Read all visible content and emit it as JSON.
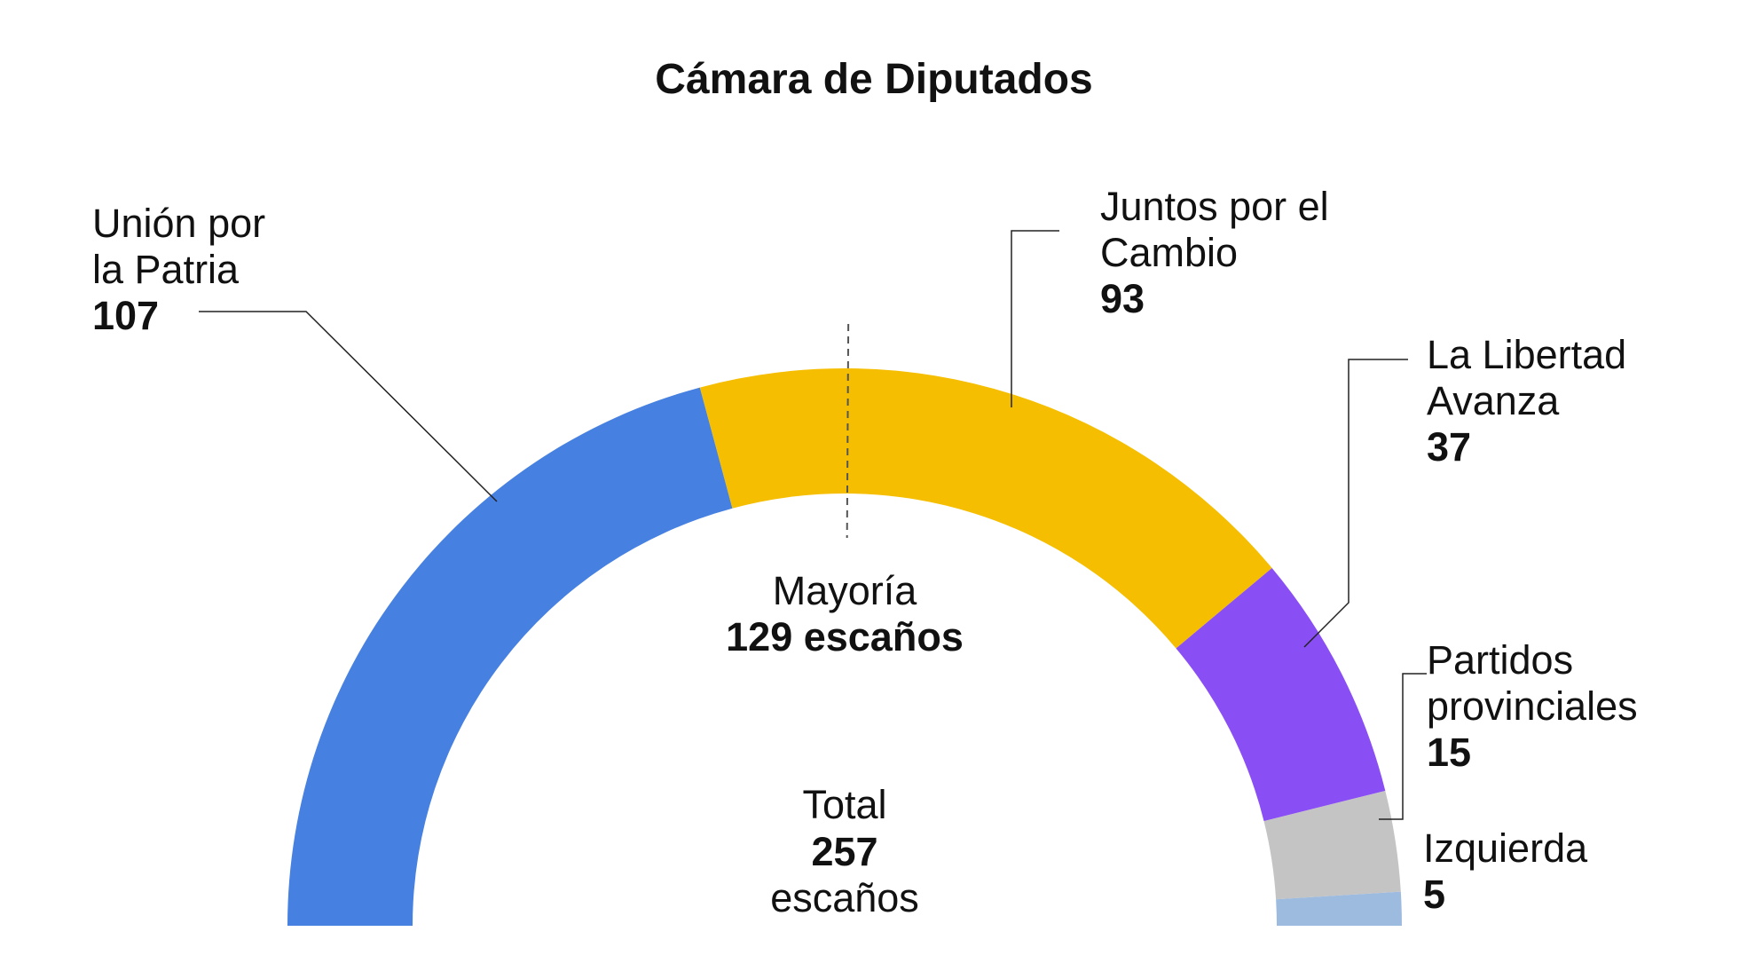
{
  "chart_data": {
    "type": "donut",
    "title": "Cámara de Diputados",
    "categories": [
      "Unión por la Patria",
      "Juntos por el Cambio",
      "La Libertad Avanza",
      "Partidos provinciales",
      "Izquierda"
    ],
    "values": [
      107,
      93,
      37,
      15,
      5
    ],
    "colors": [
      "#4680e0",
      "#f5be00",
      "#8a4ef5",
      "#c4c4c4",
      "#9dbbdf"
    ],
    "majority": {
      "label": "Mayoría",
      "value": 129,
      "value_label": "129 escaños"
    },
    "total": {
      "label": "Total",
      "value": 257,
      "unit": "escaños"
    }
  }
}
